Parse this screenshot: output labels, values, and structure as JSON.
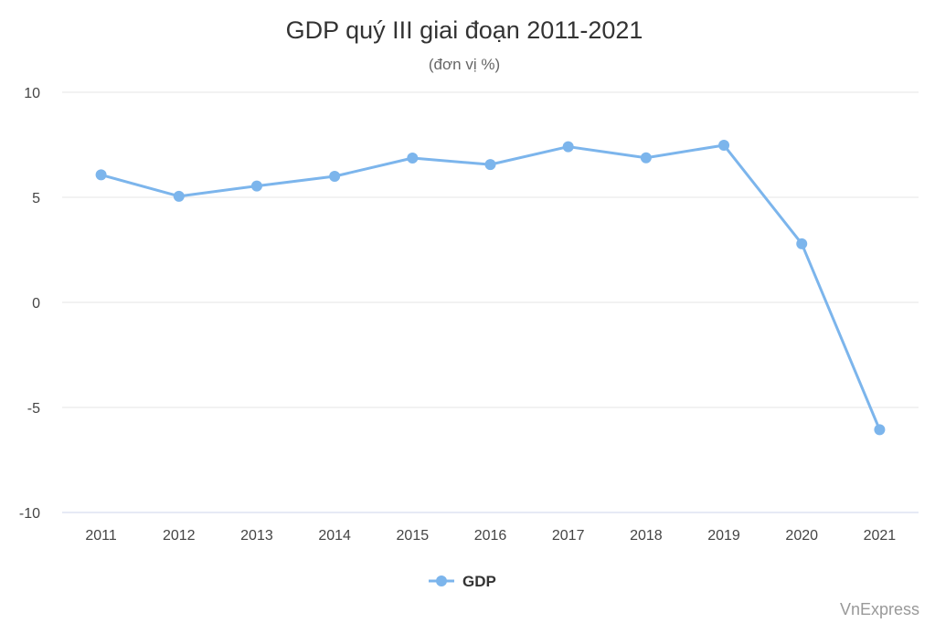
{
  "chart_data": {
    "type": "line",
    "title": "GDP quý III giai đoạn 2011-2021",
    "subtitle": "(đơn vị %)",
    "x": [
      "2011",
      "2012",
      "2013",
      "2014",
      "2015",
      "2016",
      "2017",
      "2018",
      "2019",
      "2020",
      "2021"
    ],
    "series": [
      {
        "name": "GDP",
        "color": "#7cb5ec",
        "values": [
          6.07,
          5.05,
          5.54,
          6.0,
          6.87,
          6.56,
          7.41,
          6.88,
          7.48,
          2.79,
          -6.06
        ]
      }
    ],
    "ylim": [
      -10,
      10
    ],
    "yticks": [
      "10",
      "5",
      "0",
      "-5",
      "-10"
    ],
    "grid": true,
    "legend_position": "bottom-center",
    "credit": "VnExpress"
  }
}
